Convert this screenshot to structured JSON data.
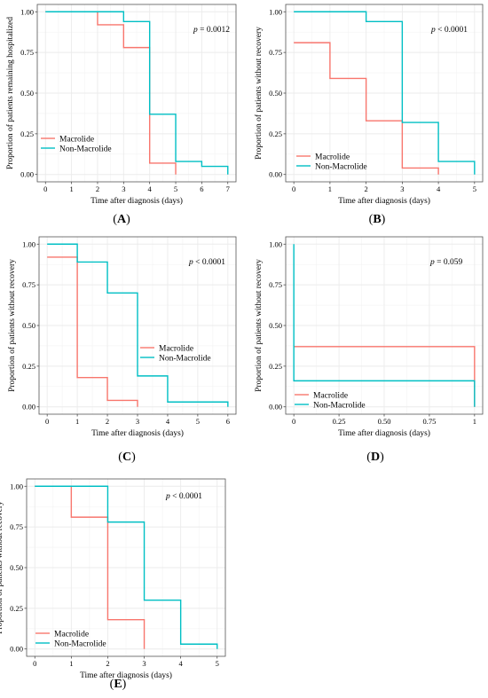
{
  "colors": {
    "macrolide": "#F8766D",
    "non_macrolide": "#00BFC4",
    "grid": "#ebebeb",
    "border": "#555555"
  },
  "chart_data": [
    {
      "id": "A",
      "panel_label": "A",
      "type": "line",
      "step": true,
      "ylabel": "Proportion of patients remaining hospitalized",
      "xlabel": "Time after diagnosis (days)",
      "annotation": {
        "p_label": "p",
        "rest": " = 0.0012"
      },
      "xlim": [
        0,
        7
      ],
      "ylim": [
        0,
        1
      ],
      "xticks": [
        "0",
        "1",
        "2",
        "3",
        "4",
        "5",
        "6",
        "7"
      ],
      "yticks": [
        "0.00",
        "0.25",
        "0.50",
        "0.75",
        "1.00"
      ],
      "legend": "bottom-left",
      "grid": true,
      "series": [
        {
          "name": "Macrolide",
          "color": "#F8766D",
          "x": [
            0,
            2,
            3,
            4,
            5
          ],
          "y": [
            1.0,
            0.92,
            0.78,
            0.07,
            0.0
          ]
        },
        {
          "name": "Non-Macrolide",
          "color": "#00BFC4",
          "x": [
            0,
            3,
            4,
            5,
            6,
            7
          ],
          "y": [
            1.0,
            0.94,
            0.37,
            0.08,
            0.05,
            0.0
          ]
        }
      ]
    },
    {
      "id": "B",
      "panel_label": "B",
      "type": "line",
      "step": true,
      "ylabel": "Proportion of patients without recovery",
      "xlabel": "Time after diagnosis (days)",
      "annotation": {
        "p_label": "p",
        "rest": " < 0.0001"
      },
      "xlim": [
        0,
        5
      ],
      "ylim": [
        0,
        1
      ],
      "xticks": [
        "0",
        "1",
        "2",
        "3",
        "4",
        "5"
      ],
      "yticks": [
        "0.00",
        "0.25",
        "0.50",
        "0.75",
        "1.00"
      ],
      "legend": "bottom-left",
      "grid": true,
      "series": [
        {
          "name": "Macrolide",
          "color": "#F8766D",
          "x": [
            0,
            1,
            2,
            3,
            4
          ],
          "y": [
            0.81,
            0.59,
            0.33,
            0.04,
            0.0
          ]
        },
        {
          "name": "Non-Macrolide",
          "color": "#00BFC4",
          "x": [
            0,
            2,
            3,
            4,
            5
          ],
          "y": [
            1.0,
            0.94,
            0.32,
            0.08,
            0.0
          ]
        }
      ]
    },
    {
      "id": "C",
      "panel_label": "C",
      "type": "line",
      "step": true,
      "ylabel": "Proportion of patients without recovery",
      "xlabel": "Time after diagnosis (days)",
      "annotation": {
        "p_label": "p",
        "rest": " < 0.0001"
      },
      "xlim": [
        0,
        6
      ],
      "ylim": [
        0,
        1
      ],
      "xticks": [
        "0",
        "1",
        "2",
        "3",
        "4",
        "5",
        "6"
      ],
      "yticks": [
        "0.00",
        "0.25",
        "0.50",
        "0.75",
        "1.00"
      ],
      "legend": "bottom-right",
      "grid": true,
      "series": [
        {
          "name": "Macrolide",
          "color": "#F8766D",
          "x": [
            0,
            1,
            2,
            3
          ],
          "y": [
            0.92,
            0.18,
            0.04,
            0.0
          ]
        },
        {
          "name": "Non-Macrolide",
          "color": "#00BFC4",
          "x": [
            0,
            1,
            2,
            3,
            4,
            6
          ],
          "y": [
            1.0,
            0.89,
            0.7,
            0.19,
            0.03,
            0.0
          ]
        }
      ]
    },
    {
      "id": "D",
      "panel_label": "D",
      "type": "line",
      "step": true,
      "ylabel": "Proportion of patients without recovery",
      "xlabel": "Time after diagnosis (days)",
      "annotation": {
        "p_label": "p",
        "rest": " = 0.059"
      },
      "xlim": [
        0,
        1
      ],
      "ylim": [
        0,
        1
      ],
      "xticks": [
        "0",
        "0.25",
        "0.50",
        "0.75",
        "1"
      ],
      "yticks": [
        "0.00",
        "0.25",
        "0.50",
        "0.75",
        "1.00"
      ],
      "legend": "bottom-left",
      "grid": true,
      "series": [
        {
          "name": "Macrolide",
          "color": "#F8766D",
          "x": [
            0,
            1
          ],
          "y": [
            0.37,
            0.0
          ]
        },
        {
          "name": "Non-Macrolide",
          "color": "#00BFC4",
          "x": [
            0,
            0,
            1
          ],
          "y": [
            1.0,
            0.16,
            0.0
          ]
        }
      ]
    },
    {
      "id": "E",
      "panel_label": "E",
      "type": "line",
      "step": true,
      "ylabel": "Proportion of patients without recovery",
      "xlabel": "Time after diagnosis (days)",
      "annotation": {
        "p_label": "p",
        "rest": " < 0.0001"
      },
      "xlim": [
        0,
        5
      ],
      "ylim": [
        0,
        1
      ],
      "xticks": [
        "0",
        "1",
        "2",
        "3",
        "4",
        "5"
      ],
      "yticks": [
        "0.00",
        "0.25",
        "0.50",
        "0.75",
        "1.00"
      ],
      "legend": "bottom-left",
      "grid": true,
      "series": [
        {
          "name": "Macrolide",
          "color": "#F8766D",
          "x": [
            0,
            1,
            2,
            3
          ],
          "y": [
            1.0,
            0.81,
            0.18,
            0.0
          ]
        },
        {
          "name": "Non-Macrolide",
          "color": "#00BFC4",
          "x": [
            0,
            2,
            3,
            4,
            5
          ],
          "y": [
            1.0,
            0.78,
            0.3,
            0.03,
            0.0
          ]
        }
      ]
    }
  ]
}
